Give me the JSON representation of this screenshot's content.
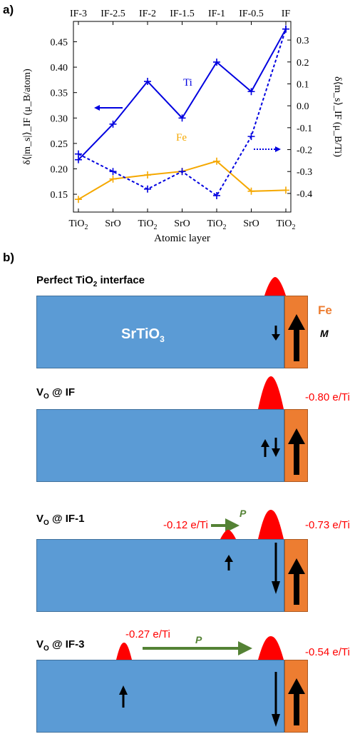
{
  "panel_a_label": "a)",
  "panel_b_label": "b)",
  "chart_data": {
    "type": "line",
    "x": [
      1,
      2,
      3,
      4,
      5,
      6,
      7
    ],
    "bottom_tick_labels": [
      "TiO2",
      "SrO",
      "TiO2",
      "SrO",
      "TiO2",
      "SrO",
      "TiO2"
    ],
    "top_tick_labels": [
      "IF-3",
      "IF-2.5",
      "IF-2",
      "IF-1.5",
      "IF-1",
      "IF-0.5",
      "IF"
    ],
    "xlabel": "Atomic layer",
    "ylabel_left": "δ⟨|m_s|⟩_IF (μ_B/atom)",
    "ylabel_right": "δ⟨m_s⟩_IF (μ_B/Ti)",
    "ylim_left": [
      0.115,
      0.49
    ],
    "ylim_right": [
      -0.485,
      0.385
    ],
    "left_ticks": [
      "0.15",
      "0.20",
      "0.25",
      "0.30",
      "0.35",
      "0.40",
      "0.45"
    ],
    "right_ticks": [
      "-0.4",
      "-0.3",
      "-0.2",
      "-0.1",
      "0.0",
      "0.1",
      "0.2",
      "0.3"
    ],
    "series": [
      {
        "name": "Ti",
        "axis": "left",
        "style": "solid",
        "color": "#0000e0",
        "values": [
          0.218,
          0.288,
          0.372,
          0.3,
          0.41,
          0.352,
          0.475
        ]
      },
      {
        "name": "Fe",
        "axis": "left",
        "style": "solid",
        "color": "#f5a800",
        "values": [
          0.14,
          0.18,
          0.188,
          0.195,
          0.215,
          0.156,
          0.158
        ]
      },
      {
        "axis": "right",
        "style": "dashed",
        "color": "#0000e0",
        "values": [
          -0.22,
          -0.3,
          -0.38,
          -0.3,
          -0.41,
          -0.14,
          0.35
        ]
      }
    ],
    "annotations": {
      "ti_label": "Ti",
      "fe_label": "Fe"
    }
  },
  "panel_b": {
    "sections": [
      {
        "title_main": "Perfect TiO",
        "title_sub": "2",
        "title_end": " interface"
      },
      {
        "title_main": "V",
        "title_sub": "O",
        "title_end": " @ IF",
        "charge_right": "-0.80 e/Ti"
      },
      {
        "title_main": "V",
        "title_sub": "O",
        "title_end": " @ IF-1",
        "charge_left": "-0.12 e/Ti",
        "charge_right": "-0.73 e/Ti",
        "p_label": "P"
      },
      {
        "title_main": "V",
        "title_sub": "O",
        "title_end": " @ IF-3",
        "charge_left": "-0.27 e/Ti",
        "charge_right": "-0.54 e/Ti",
        "p_label": "P"
      }
    ],
    "srtio3_main": "SrTiO",
    "srtio3_sub": "3",
    "fe_label": "Fe",
    "m_label": "M",
    "colors": {
      "slab": "#5b9bd5",
      "fe": "#ed7d31",
      "charge": "#ff0000",
      "polarization": "#548235"
    }
  }
}
